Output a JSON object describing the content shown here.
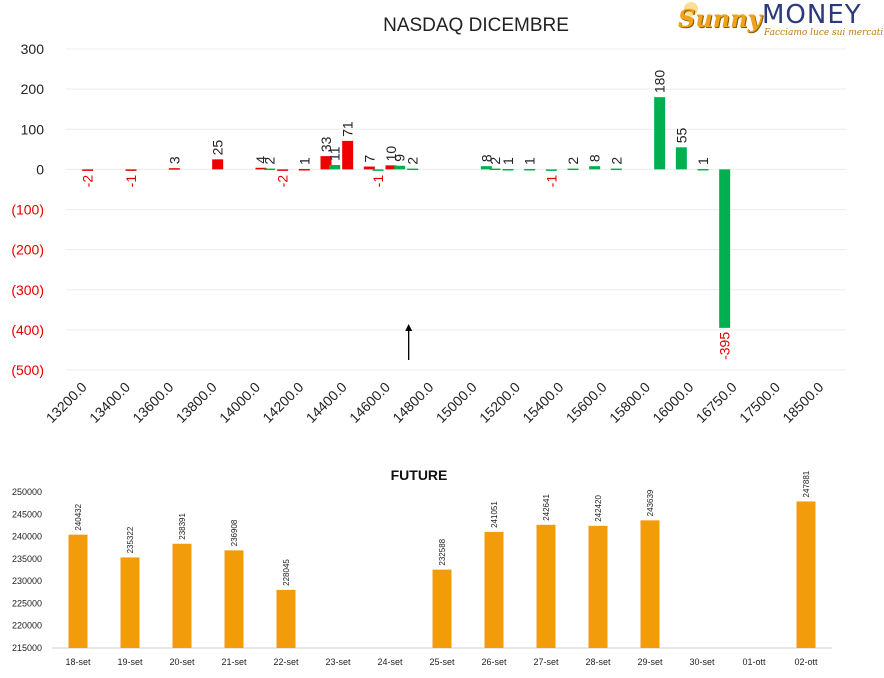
{
  "logo": {
    "word1": "Sunny",
    "word2": "MONEY",
    "tagline": "Facciamo luce sui mercati"
  },
  "colors": {
    "red": "#ee0000",
    "green": "#00b050",
    "orange": "#f39c0a",
    "negative_label": "#e00000",
    "text": "#222222",
    "grid": "#ececec"
  },
  "chart_data": [
    {
      "type": "bar",
      "title": "NASDAQ DICEMBRE",
      "ylim": [
        -500,
        300
      ],
      "yticks": [
        {
          "value": 300,
          "label": "300"
        },
        {
          "value": 200,
          "label": "200"
        },
        {
          "value": 100,
          "label": "100"
        },
        {
          "value": 0,
          "label": "0"
        },
        {
          "value": -100,
          "label": "(100)"
        },
        {
          "value": -200,
          "label": "(200)"
        },
        {
          "value": -300,
          "label": "(300)"
        },
        {
          "value": -400,
          "label": "(400)"
        },
        {
          "value": -500,
          "label": "(500)"
        }
      ],
      "categories": [
        "13200.0",
        "13400.0",
        "13600.0",
        "13800.0",
        "14000.0",
        "14200.0",
        "14400.0",
        "14600.0",
        "14800.0",
        "15000.0",
        "15200.0",
        "15400.0",
        "15600.0",
        "15800.0",
        "16000.0",
        "16750.0",
        "17500.0",
        "18500.0"
      ],
      "series": [
        {
          "color_key": "red",
          "points": [
            {
              "pos": 0.0,
              "value": -2,
              "label": "-2"
            },
            {
              "pos": 1.0,
              "value": -1,
              "label": "-1"
            },
            {
              "pos": 2.0,
              "value": 3,
              "label": "3"
            },
            {
              "pos": 3.0,
              "value": 25,
              "label": "25"
            },
            {
              "pos": 4.0,
              "value": 4,
              "label": "4"
            },
            {
              "pos": 4.5,
              "value": -2,
              "label": "-2"
            },
            {
              "pos": 5.0,
              "value": 1,
              "label": "1"
            },
            {
              "pos": 5.5,
              "value": 33,
              "label": "33"
            },
            {
              "pos": 6.0,
              "value": 71,
              "label": "71"
            },
            {
              "pos": 6.5,
              "value": 7,
              "label": "7"
            },
            {
              "pos": 7.0,
              "value": 10,
              "label": "10"
            }
          ]
        },
        {
          "color_key": "green",
          "points": [
            {
              "pos": 4.2,
              "value": 2,
              "label": "2"
            },
            {
              "pos": 5.7,
              "value": 11,
              "label": "11"
            },
            {
              "pos": 6.7,
              "value": -1,
              "label": "-1"
            },
            {
              "pos": 7.2,
              "value": 9,
              "label": "9"
            },
            {
              "pos": 7.5,
              "value": 2,
              "label": "2"
            },
            {
              "pos": 9.2,
              "value": 8,
              "label": "8"
            },
            {
              "pos": 9.4,
              "value": 2,
              "label": "2"
            },
            {
              "pos": 9.7,
              "value": 1,
              "label": "1"
            },
            {
              "pos": 10.2,
              "value": 1,
              "label": "1"
            },
            {
              "pos": 10.7,
              "value": -1,
              "label": "-1"
            },
            {
              "pos": 11.2,
              "value": 2,
              "label": "2"
            },
            {
              "pos": 11.7,
              "value": 8,
              "label": "8"
            },
            {
              "pos": 12.2,
              "value": 2,
              "label": "2"
            },
            {
              "pos": 13.2,
              "value": 180,
              "label": "180"
            },
            {
              "pos": 13.7,
              "value": 55,
              "label": "55"
            },
            {
              "pos": 14.2,
              "value": 1,
              "label": "1"
            },
            {
              "pos": 14.7,
              "value": -395,
              "label": "-395"
            }
          ]
        }
      ],
      "marker": {
        "type": "arrow-up",
        "pos": 7.5
      }
    },
    {
      "type": "bar",
      "title": "FUTURE",
      "ylim": [
        215000,
        250000
      ],
      "yticks": [
        250000,
        245000,
        240000,
        235000,
        230000,
        225000,
        220000,
        215000
      ],
      "categories": [
        "18-set",
        "19-set",
        "20-set",
        "21-set",
        "22-set",
        "23-set",
        "24-set",
        "25-set",
        "26-set",
        "27-set",
        "28-set",
        "29-set",
        "30-set",
        "01-ott",
        "02-ott"
      ],
      "values": [
        240432,
        235322,
        238391,
        236908,
        228045,
        null,
        null,
        232588,
        241051,
        242641,
        242420,
        243639,
        null,
        null,
        247881
      ]
    }
  ]
}
